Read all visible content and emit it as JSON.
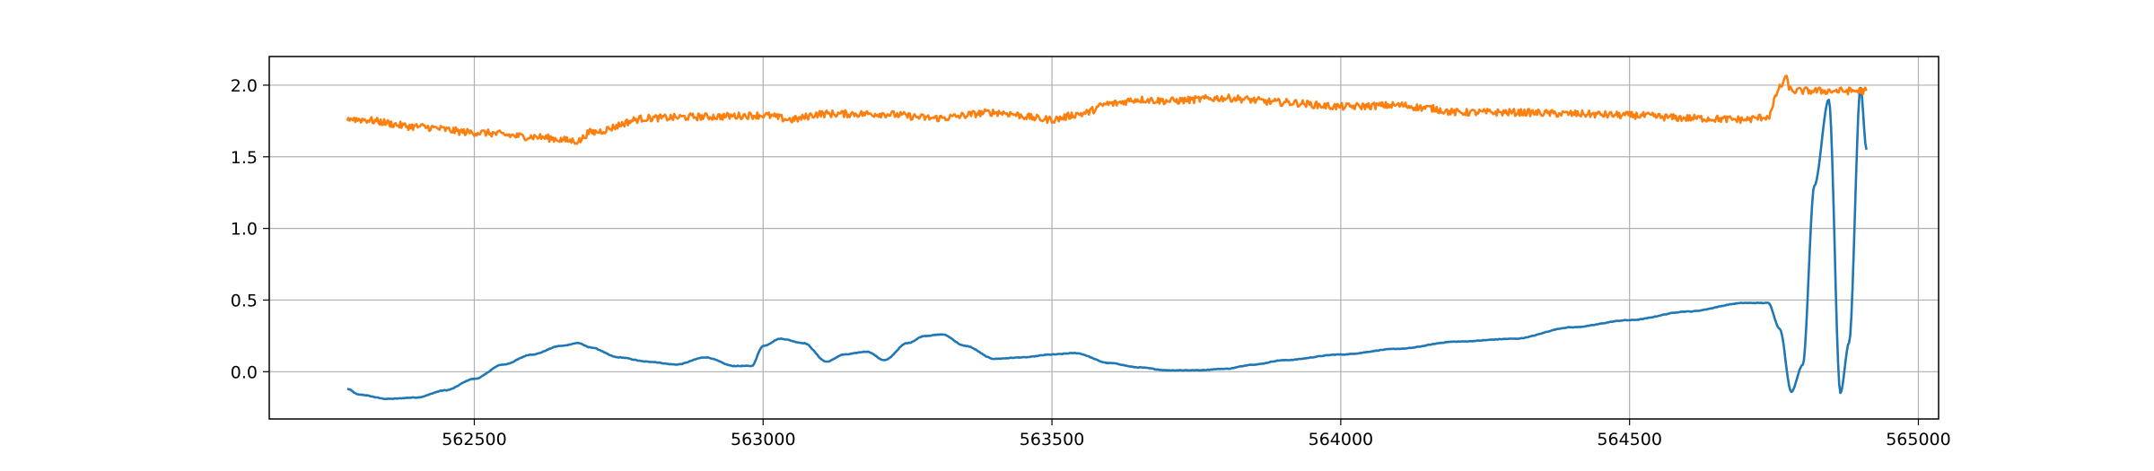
{
  "chart_data": {
    "type": "line",
    "title": "",
    "xlabel": "",
    "ylabel": "",
    "xlim": [
      562145,
      565035
    ],
    "ylim": [
      -0.33,
      2.2
    ],
    "grid": true,
    "x_ticks": [
      {
        "value": 562500,
        "label": "562500"
      },
      {
        "value": 563000,
        "label": "563000"
      },
      {
        "value": 563500,
        "label": "563500"
      },
      {
        "value": 564000,
        "label": "564000"
      },
      {
        "value": 564500,
        "label": "564500"
      },
      {
        "value": 565000,
        "label": "565000"
      }
    ],
    "y_ticks": [
      {
        "value": 0.0,
        "label": "0.0"
      },
      {
        "value": 0.5,
        "label": "0.5"
      },
      {
        "value": 1.0,
        "label": "1.0"
      },
      {
        "value": 1.5,
        "label": "1.5"
      },
      {
        "value": 2.0,
        "label": "2.0"
      }
    ],
    "series": [
      {
        "color": "#1f77b4",
        "noise": 0.004,
        "x": [
          562280,
          562300,
          562350,
          562400,
          562450,
          562500,
          562550,
          562600,
          562650,
          562680,
          562700,
          562750,
          562800,
          562850,
          562900,
          562950,
          562980,
          563000,
          563030,
          563070,
          563110,
          563140,
          563180,
          563210,
          563250,
          563280,
          563310,
          563350,
          563400,
          563450,
          563500,
          563540,
          563600,
          563650,
          563700,
          563750,
          563800,
          563850,
          563900,
          564000,
          564100,
          564200,
          564300,
          564400,
          564500,
          564600,
          564700,
          564740,
          564760,
          564780,
          564800,
          564820,
          564845,
          564865,
          564880,
          564900,
          564910
        ],
        "values": [
          -0.12,
          -0.16,
          -0.19,
          -0.18,
          -0.13,
          -0.05,
          0.05,
          0.12,
          0.18,
          0.2,
          0.17,
          0.1,
          0.07,
          0.05,
          0.1,
          0.04,
          0.04,
          0.18,
          0.23,
          0.2,
          0.07,
          0.12,
          0.14,
          0.08,
          0.2,
          0.25,
          0.26,
          0.18,
          0.09,
          0.1,
          0.12,
          0.13,
          0.06,
          0.03,
          0.01,
          0.01,
          0.02,
          0.05,
          0.08,
          0.12,
          0.16,
          0.21,
          0.23,
          0.31,
          0.36,
          0.42,
          0.48,
          0.48,
          0.3,
          -0.14,
          0.05,
          1.3,
          1.9,
          -0.15,
          0.2,
          1.98,
          1.55
        ]
      },
      {
        "color": "#ff7f0e",
        "noise": 0.05,
        "x": [
          562280,
          562300,
          562400,
          562500,
          562600,
          562680,
          562700,
          562800,
          562900,
          563000,
          563050,
          563100,
          563200,
          563300,
          563400,
          563500,
          563550,
          563600,
          563650,
          563700,
          563800,
          563900,
          564000,
          564100,
          564150,
          564200,
          564300,
          564400,
          564500,
          564600,
          564700,
          564740,
          564760,
          564770,
          564780,
          564800,
          564850,
          564910
        ],
        "values": [
          1.77,
          1.76,
          1.71,
          1.67,
          1.64,
          1.61,
          1.67,
          1.77,
          1.78,
          1.79,
          1.76,
          1.8,
          1.8,
          1.77,
          1.81,
          1.76,
          1.8,
          1.87,
          1.9,
          1.89,
          1.91,
          1.88,
          1.85,
          1.86,
          1.84,
          1.81,
          1.81,
          1.8,
          1.79,
          1.77,
          1.76,
          1.78,
          1.98,
          2.05,
          1.96,
          1.96,
          1.96,
          1.96
        ]
      }
    ]
  }
}
